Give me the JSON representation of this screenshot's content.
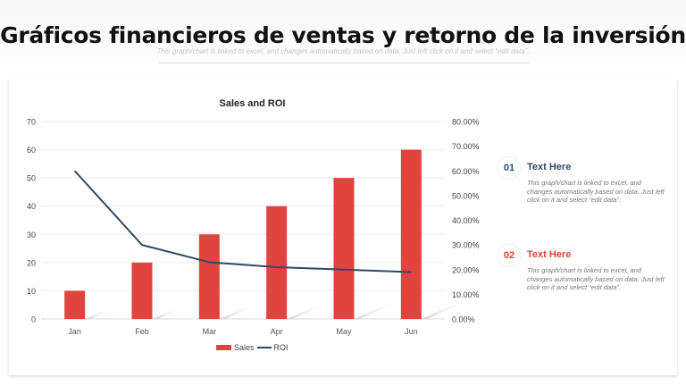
{
  "page": {
    "title": "Gráficos financieros de ventas y retorno de la inversión",
    "subtitle": "This graph/chart is linked to excel, and changes automatically based on data. Just left click on it and select “edit data”."
  },
  "colors": {
    "sales_bar": "#e0443e",
    "roi_line": "#2e4a62",
    "accent_red": "#e0443e",
    "accent_dark": "#2e4a62"
  },
  "chart_data": {
    "type": "bar",
    "title": "Sales and ROI",
    "categories": [
      "Jan",
      "Feb",
      "Mar",
      "Apr",
      "May",
      "Jun"
    ],
    "series": [
      {
        "name": "Sales",
        "type": "bar",
        "axis": "left",
        "values": [
          10,
          20,
          30,
          40,
          50,
          60
        ]
      },
      {
        "name": "ROI",
        "type": "line",
        "axis": "right",
        "values": [
          0.6,
          0.3,
          0.23,
          0.21,
          0.2,
          0.19
        ]
      }
    ],
    "xlabel": "",
    "ylabel": "",
    "ylim": [
      0,
      70
    ],
    "y_ticks": [
      "0",
      "10",
      "20",
      "30",
      "40",
      "50",
      "60",
      "70"
    ],
    "y2lim": [
      0,
      0.8
    ],
    "y2_ticks": [
      "0.00%",
      "10.00%",
      "20.00%",
      "30.00%",
      "40.00%",
      "50.00%",
      "60.00%",
      "70.00%",
      "80.00%"
    ],
    "grid": true,
    "legend_position": "bottom",
    "legend": [
      "Sales",
      "ROI"
    ]
  },
  "points": [
    {
      "number": "01",
      "heading": "Text Here",
      "description": "This graph/chart is linked to excel, and changes automatically based on data. Just left click on it and select “edit data”."
    },
    {
      "number": "02",
      "heading": "Text Here",
      "description": "This graph/chart is linked to excel, and changes automatically based on data. Just left click on it and select “edit data”."
    }
  ]
}
